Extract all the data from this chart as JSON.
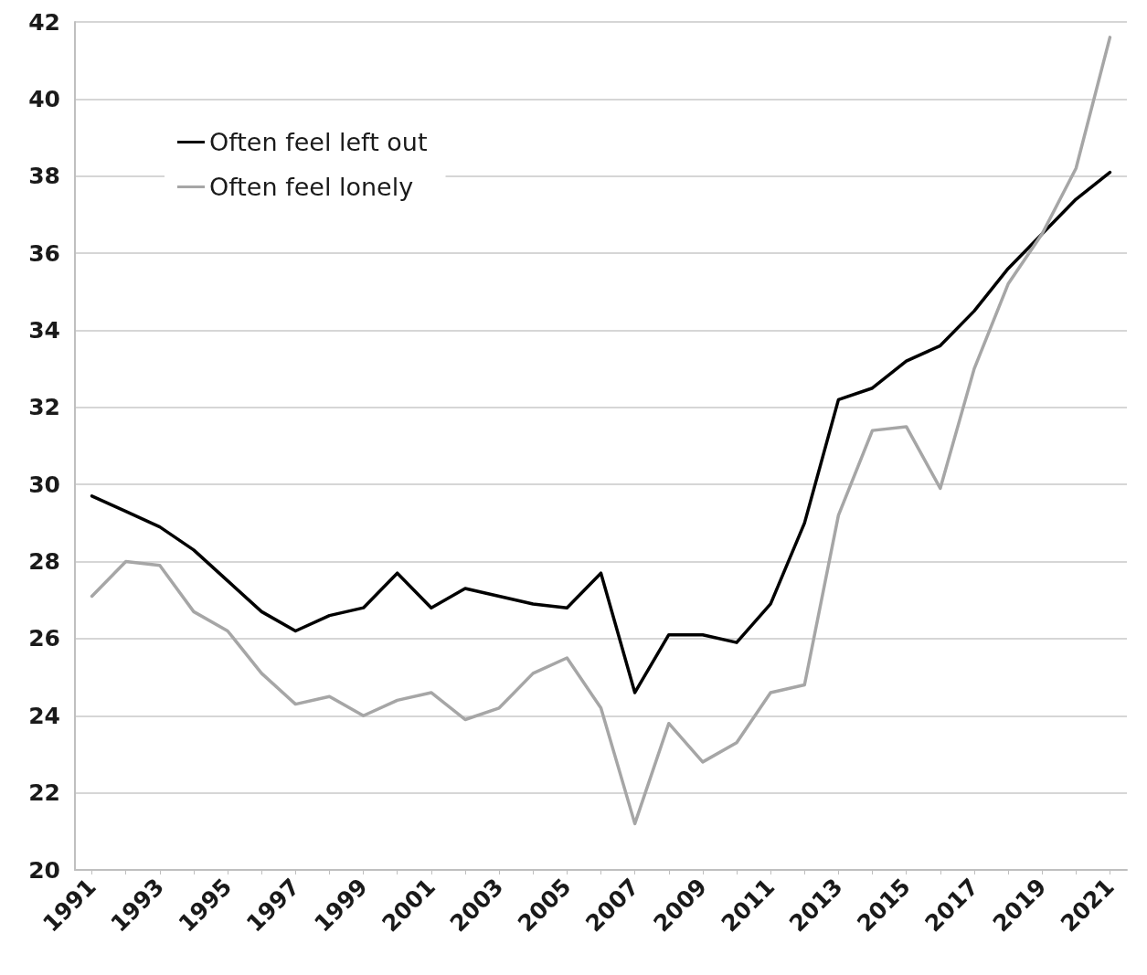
{
  "chart_data": {
    "type": "line",
    "categories": [
      "1991",
      null,
      "1993",
      null,
      "1995",
      null,
      "1997",
      null,
      "1999",
      null,
      "2001",
      null,
      "2003",
      null,
      "2005",
      null,
      "2007",
      null,
      "2009",
      null,
      "2011",
      null,
      "2013",
      null,
      "2015",
      null,
      "2017",
      null,
      "2019",
      null,
      "2021"
    ],
    "series": [
      {
        "name": "Often feel left out",
        "color": "#000000",
        "values": [
          29.7,
          29.3,
          28.9,
          28.3,
          27.5,
          26.7,
          26.2,
          26.6,
          26.8,
          27.7,
          26.8,
          27.3,
          27.1,
          26.9,
          26.8,
          27.7,
          24.6,
          26.1,
          26.1,
          25.9,
          26.9,
          29.0,
          32.2,
          32.5,
          33.2,
          33.6,
          34.5,
          35.6,
          36.5,
          37.4,
          38.1
        ]
      },
      {
        "name": "Often feel lonely",
        "color": "#a6a6a6",
        "values": [
          27.1,
          28.0,
          27.9,
          26.7,
          26.2,
          25.1,
          24.3,
          24.5,
          24.0,
          24.4,
          24.6,
          23.9,
          24.2,
          25.1,
          25.5,
          24.2,
          21.2,
          23.8,
          22.8,
          23.3,
          24.6,
          24.8,
          29.2,
          31.4,
          31.5,
          29.9,
          33.0,
          35.2,
          36.5,
          38.2,
          41.6
        ]
      }
    ],
    "ylim": [
      20,
      42
    ],
    "yticks": [
      20,
      22,
      24,
      26,
      28,
      30,
      32,
      34,
      36,
      38,
      40,
      42
    ],
    "grid": "y",
    "legend": "top left",
    "marker": "none",
    "line_style": "solid"
  }
}
